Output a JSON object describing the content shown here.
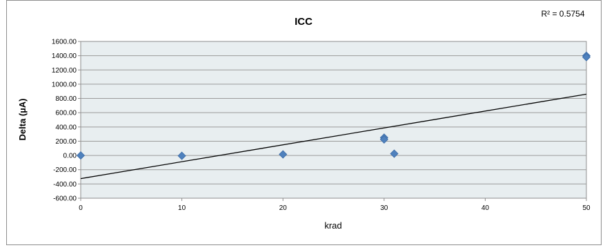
{
  "chart_data": {
    "type": "scatter",
    "title": "ICC",
    "xlabel": "krad",
    "ylabel": "Delta (µA)",
    "xlim": [
      0,
      50
    ],
    "ylim": [
      -600,
      1600
    ],
    "x_ticks": [
      "0",
      "10",
      "20",
      "30",
      "40",
      "50"
    ],
    "y_ticks": [
      "1600.00",
      "1400.00",
      "1200.00",
      "1000.00",
      "800.00",
      "600.00",
      "400.00",
      "200.00",
      "0.00",
      "-200.00",
      "-400.00",
      "-600.00"
    ],
    "grid": true,
    "legend": "none",
    "series": [
      {
        "points": [
          {
            "x": 0,
            "y": 0
          },
          {
            "x": 10,
            "y": -5
          },
          {
            "x": 20,
            "y": 15
          },
          {
            "x": 30,
            "y": 250
          },
          {
            "x": 30,
            "y": 225
          },
          {
            "x": 31,
            "y": 25
          },
          {
            "x": 50,
            "y": 1400
          },
          {
            "x": 50,
            "y": 1380
          }
        ],
        "color": "#4f81bd"
      }
    ],
    "trendline": {
      "type": "linear",
      "start": {
        "x": 0,
        "y": -325
      },
      "end": {
        "x": 50,
        "y": 860
      },
      "r2_label": "R² = 0.5754",
      "color": "#000000"
    },
    "plot_bg": "#e8eef0",
    "grid_color": "#9a9a9a"
  }
}
